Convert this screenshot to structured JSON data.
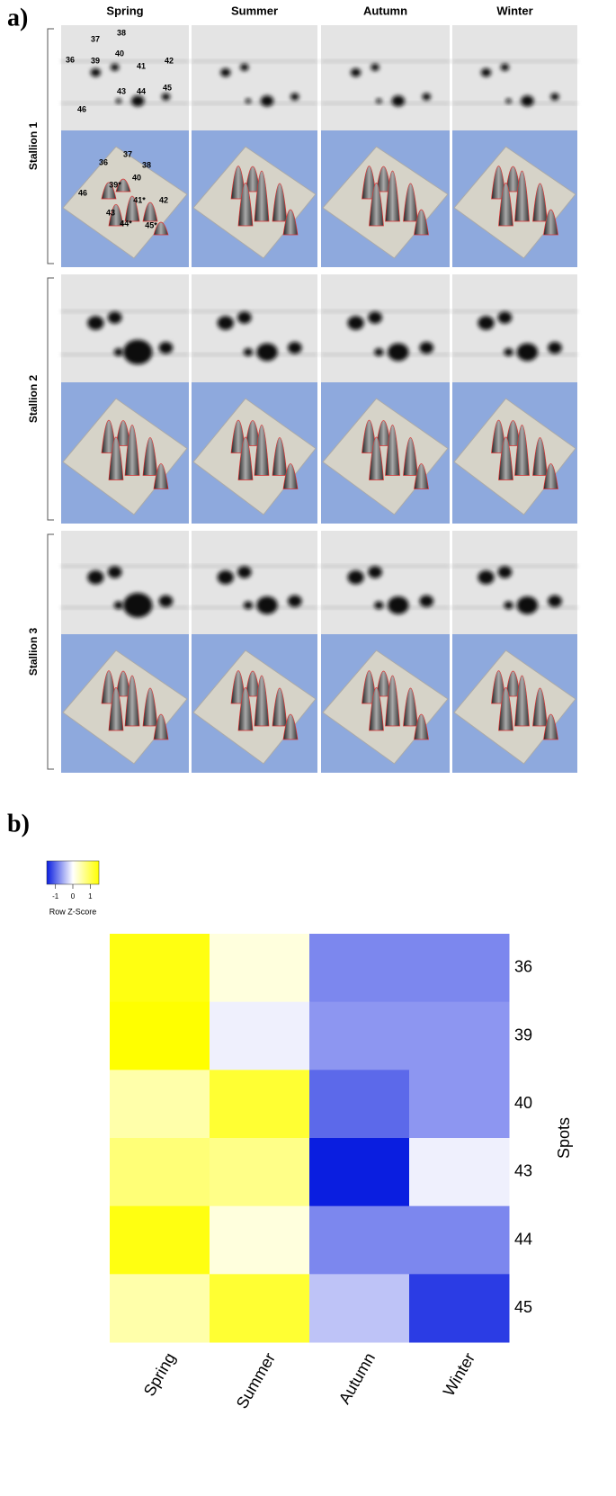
{
  "panel_a": {
    "label": "a)",
    "columns": [
      "Spring",
      "Summer",
      "Autumn",
      "Winter"
    ],
    "rows": [
      "Stallion 1",
      "Stallion 2",
      "Stallion 3"
    ],
    "gel_spot_labels": [
      "36",
      "37",
      "38",
      "39",
      "40",
      "41",
      "42",
      "43",
      "44",
      "45",
      "46"
    ],
    "surface_spot_labels": [
      "36",
      "37",
      "38",
      "39*",
      "40",
      "41*",
      "42",
      "43",
      "44*",
      "45*",
      "46"
    ]
  },
  "panel_b_label": "b)",
  "chart_data": {
    "type": "heatmap",
    "x": [
      "Spring",
      "Summer",
      "Autumn",
      "Winter"
    ],
    "y": [
      "36",
      "39",
      "40",
      "43",
      "44",
      "45"
    ],
    "y_axis_title": "Spots",
    "values": [
      [
        1.4,
        0.2,
        -0.8,
        -0.8
      ],
      [
        1.5,
        -0.1,
        -0.7,
        -0.7
      ],
      [
        0.5,
        1.2,
        -1.0,
        -0.7
      ],
      [
        0.8,
        0.7,
        -1.5,
        -0.1
      ],
      [
        1.4,
        0.2,
        -0.8,
        -0.8
      ],
      [
        0.5,
        1.2,
        -0.4,
        -1.3
      ]
    ],
    "zlim": [
      -1.5,
      1.5
    ],
    "colors": [
      "#0a1ee0",
      "#ffffff",
      "#ffff00"
    ],
    "colorbar_ticks": [
      -1,
      0,
      1
    ],
    "colorbar_title": "Row Z-Score"
  }
}
